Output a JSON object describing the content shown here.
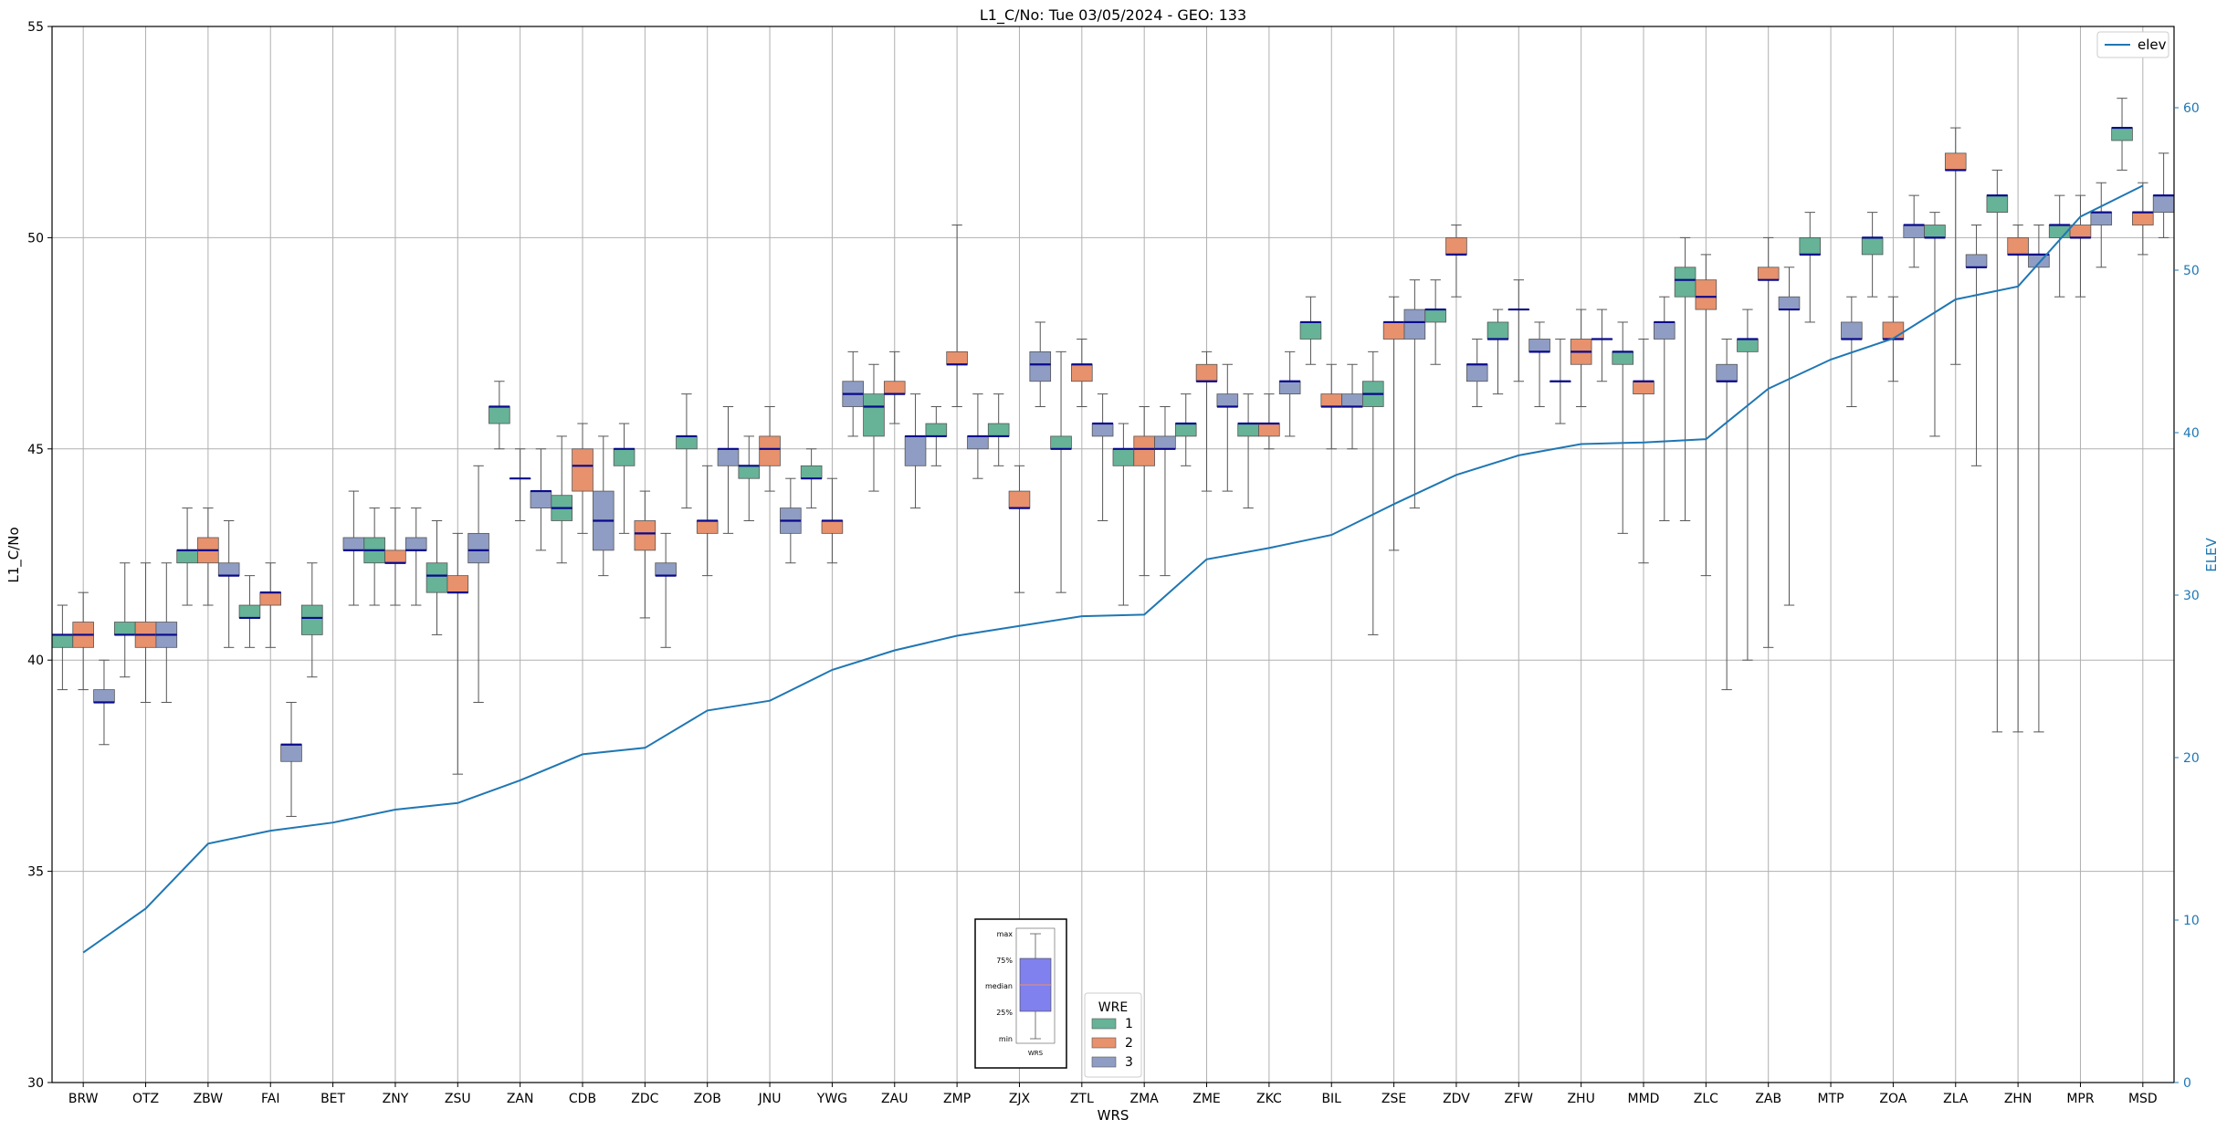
{
  "chart_data": {
    "type": "box",
    "title": "L1_C/No: Tue 03/05/2024 - GEO: 133",
    "xlabel": "WRS",
    "ylabel": "L1_C/No",
    "y2label": "ELEV",
    "ylim": [
      30,
      55
    ],
    "y2lim": [
      0,
      65
    ],
    "yticks": [
      30,
      35,
      40,
      45,
      50,
      55
    ],
    "y2ticks": [
      0,
      10,
      20,
      30,
      40,
      50,
      60
    ],
    "grid": true,
    "categories": [
      "BRW",
      "OTZ",
      "ZBW",
      "FAI",
      "BET",
      "ZNY",
      "ZSU",
      "ZAN",
      "CDB",
      "ZDC",
      "ZOB",
      "JNU",
      "YWG",
      "ZAU",
      "ZMP",
      "ZJX",
      "ZTL",
      "ZMA",
      "ZME",
      "ZKC",
      "BIL",
      "ZSE",
      "ZDV",
      "ZFW",
      "ZHU",
      "MMD",
      "ZLC",
      "ZAB",
      "MTP",
      "ZOA",
      "ZLA",
      "ZHN",
      "MPR",
      "MSD"
    ],
    "line_series": {
      "name": "elev",
      "color": "#1f77b4",
      "values": [
        8,
        10.7,
        14.7,
        15.5,
        16,
        16.8,
        17.2,
        18.6,
        20.2,
        20.6,
        22.9,
        23.5,
        25.4,
        26.6,
        27.5,
        28.1,
        28.7,
        28.8,
        32.2,
        32.9,
        33.7,
        35.6,
        37.4,
        38.6,
        39.3,
        39.4,
        39.6,
        42.7,
        44.5,
        45.8,
        48.2,
        49,
        53.3,
        55.2
      ]
    },
    "box_legend": {
      "title": "WRE",
      "entries": [
        {
          "label": "1",
          "color": "#66b398"
        },
        {
          "label": "2",
          "color": "#e8916d"
        },
        {
          "label": "3",
          "color": "#8f9dc4"
        }
      ]
    },
    "legend_placement": "top-right",
    "boxes": [
      {
        "station": "BRW",
        "wre": 1,
        "min": 39.3,
        "q1": 40.3,
        "median": 40.6,
        "q3": 40.6,
        "max": 41.3
      },
      {
        "station": "BRW",
        "wre": 2,
        "min": 39.3,
        "q1": 40.3,
        "median": 40.6,
        "q3": 40.9,
        "max": 41.6
      },
      {
        "station": "BRW",
        "wre": 3,
        "min": 38,
        "q1": 39,
        "median": 39,
        "q3": 39.3,
        "max": 40
      },
      {
        "station": "OTZ",
        "wre": 1,
        "min": 39.6,
        "q1": 40.6,
        "median": 40.6,
        "q3": 40.9,
        "max": 42.3
      },
      {
        "station": "OTZ",
        "wre": 2,
        "min": 39,
        "q1": 40.3,
        "median": 40.6,
        "q3": 40.9,
        "max": 42.3
      },
      {
        "station": "OTZ",
        "wre": 3,
        "min": 39,
        "q1": 40.3,
        "median": 40.6,
        "q3": 40.9,
        "max": 42.3
      },
      {
        "station": "ZBW",
        "wre": 1,
        "min": 41.3,
        "q1": 42.3,
        "median": 42.6,
        "q3": 42.6,
        "max": 43.6
      },
      {
        "station": "ZBW",
        "wre": 2,
        "min": 41.3,
        "q1": 42.3,
        "median": 42.6,
        "q3": 42.9,
        "max": 43.6
      },
      {
        "station": "ZBW",
        "wre": 3,
        "min": 40.3,
        "q1": 42,
        "median": 42,
        "q3": 42.3,
        "max": 43.3
      },
      {
        "station": "FAI",
        "wre": 1,
        "min": 40.3,
        "q1": 41,
        "median": 41,
        "q3": 41.3,
        "max": 42
      },
      {
        "station": "FAI",
        "wre": 2,
        "min": 40.3,
        "q1": 41.3,
        "median": 41.6,
        "q3": 41.6,
        "max": 42.3
      },
      {
        "station": "FAI",
        "wre": 3,
        "min": 36.3,
        "q1": 37.6,
        "median": 38,
        "q3": 38,
        "max": 39
      },
      {
        "station": "BET",
        "wre": 1,
        "min": 39.6,
        "q1": 40.6,
        "median": 41,
        "q3": 41.3,
        "max": 42.3
      },
      {
        "station": "BET",
        "wre": 3,
        "min": 41.3,
        "q1": 42.6,
        "median": 42.6,
        "q3": 42.9,
        "max": 44
      },
      {
        "station": "ZNY",
        "wre": 1,
        "min": 41.3,
        "q1": 42.3,
        "median": 42.6,
        "q3": 42.9,
        "max": 43.6
      },
      {
        "station": "ZNY",
        "wre": 2,
        "min": 41.3,
        "q1": 42.3,
        "median": 42.3,
        "q3": 42.6,
        "max": 43.6
      },
      {
        "station": "ZNY",
        "wre": 3,
        "min": 41.3,
        "q1": 42.6,
        "median": 42.6,
        "q3": 42.9,
        "max": 43.6
      },
      {
        "station": "ZSU",
        "wre": 1,
        "min": 40.6,
        "q1": 41.6,
        "median": 42,
        "q3": 42.3,
        "max": 43.3
      },
      {
        "station": "ZSU",
        "wre": 2,
        "min": 37.3,
        "q1": 41.6,
        "median": 41.6,
        "q3": 42,
        "max": 43
      },
      {
        "station": "ZSU",
        "wre": 3,
        "min": 39,
        "q1": 42.3,
        "median": 42.6,
        "q3": 43,
        "max": 44.6
      },
      {
        "station": "ZAN",
        "wre": 1,
        "min": 45,
        "q1": 45.6,
        "median": 46,
        "q3": 46,
        "max": 46.6
      },
      {
        "station": "ZAN",
        "wre": 2,
        "min": 43.3,
        "q1": 44.3,
        "median": 44.3,
        "q3": 44.3,
        "max": 45
      },
      {
        "station": "ZAN",
        "wre": 3,
        "min": 42.6,
        "q1": 43.6,
        "median": 44,
        "q3": 44,
        "max": 45
      },
      {
        "station": "CDB",
        "wre": 1,
        "min": 42.3,
        "q1": 43.3,
        "median": 43.6,
        "q3": 43.9,
        "max": 45.3
      },
      {
        "station": "CDB",
        "wre": 2,
        "min": 43,
        "q1": 44,
        "median": 44.6,
        "q3": 45,
        "max": 45.6
      },
      {
        "station": "CDB",
        "wre": 3,
        "min": 42,
        "q1": 42.6,
        "median": 43.3,
        "q3": 44,
        "max": 45.3
      },
      {
        "station": "ZDC",
        "wre": 1,
        "min": 43,
        "q1": 44.6,
        "median": 45,
        "q3": 45,
        "max": 45.6
      },
      {
        "station": "ZDC",
        "wre": 2,
        "min": 41,
        "q1": 42.6,
        "median": 43,
        "q3": 43.3,
        "max": 44
      },
      {
        "station": "ZDC",
        "wre": 3,
        "min": 40.3,
        "q1": 42,
        "median": 42,
        "q3": 42.3,
        "max": 43
      },
      {
        "station": "ZOB",
        "wre": 1,
        "min": 43.6,
        "q1": 45,
        "median": 45.3,
        "q3": 45.3,
        "max": 46.3
      },
      {
        "station": "ZOB",
        "wre": 2,
        "min": 42,
        "q1": 43,
        "median": 43.3,
        "q3": 43.3,
        "max": 44.6
      },
      {
        "station": "ZOB",
        "wre": 3,
        "min": 43,
        "q1": 44.6,
        "median": 45,
        "q3": 45,
        "max": 46
      },
      {
        "station": "JNU",
        "wre": 1,
        "min": 43.3,
        "q1": 44.3,
        "median": 44.6,
        "q3": 44.6,
        "max": 45.3
      },
      {
        "station": "JNU",
        "wre": 2,
        "min": 44,
        "q1": 44.6,
        "median": 45,
        "q3": 45.3,
        "max": 46
      },
      {
        "station": "JNU",
        "wre": 3,
        "min": 42.3,
        "q1": 43,
        "median": 43.3,
        "q3": 43.6,
        "max": 44.3
      },
      {
        "station": "YWG",
        "wre": 1,
        "min": 43.6,
        "q1": 44.3,
        "median": 44.3,
        "q3": 44.6,
        "max": 45
      },
      {
        "station": "YWG",
        "wre": 2,
        "min": 42.3,
        "q1": 43,
        "median": 43.3,
        "q3": 43.3,
        "max": 44.3
      },
      {
        "station": "YWG",
        "wre": 3,
        "min": 45.3,
        "q1": 46,
        "median": 46.3,
        "q3": 46.6,
        "max": 47.3
      },
      {
        "station": "ZAU",
        "wre": 1,
        "min": 44,
        "q1": 45.3,
        "median": 46,
        "q3": 46.3,
        "max": 47
      },
      {
        "station": "ZAU",
        "wre": 2,
        "min": 45.6,
        "q1": 46.3,
        "median": 46.3,
        "q3": 46.6,
        "max": 47.3
      },
      {
        "station": "ZAU",
        "wre": 3,
        "min": 43.6,
        "q1": 44.6,
        "median": 45.3,
        "q3": 45.3,
        "max": 46.3
      },
      {
        "station": "ZMP",
        "wre": 1,
        "min": 44.6,
        "q1": 45.3,
        "median": 45.3,
        "q3": 45.6,
        "max": 46
      },
      {
        "station": "ZMP",
        "wre": 2,
        "min": 46,
        "q1": 47,
        "median": 47,
        "q3": 47.3,
        "max": 50.3
      },
      {
        "station": "ZMP",
        "wre": 3,
        "min": 44.3,
        "q1": 45,
        "median": 45.3,
        "q3": 45.3,
        "max": 46.3
      },
      {
        "station": "ZJX",
        "wre": 1,
        "min": 44.6,
        "q1": 45.3,
        "median": 45.3,
        "q3": 45.6,
        "max": 46.3
      },
      {
        "station": "ZJX",
        "wre": 2,
        "min": 41.6,
        "q1": 43.6,
        "median": 43.6,
        "q3": 44,
        "max": 44.6
      },
      {
        "station": "ZJX",
        "wre": 3,
        "min": 46,
        "q1": 46.6,
        "median": 47,
        "q3": 47.3,
        "max": 48
      },
      {
        "station": "ZTL",
        "wre": 1,
        "min": 41.6,
        "q1": 45,
        "median": 45,
        "q3": 45.3,
        "max": 47.3
      },
      {
        "station": "ZTL",
        "wre": 2,
        "min": 46,
        "q1": 46.6,
        "median": 47,
        "q3": 47,
        "max": 47.6
      },
      {
        "station": "ZTL",
        "wre": 3,
        "min": 43.3,
        "q1": 45.3,
        "median": 45.6,
        "q3": 45.6,
        "max": 46.3
      },
      {
        "station": "ZMA",
        "wre": 1,
        "min": 41.3,
        "q1": 44.6,
        "median": 45,
        "q3": 45,
        "max": 45.6
      },
      {
        "station": "ZMA",
        "wre": 2,
        "min": 42,
        "q1": 44.6,
        "median": 45,
        "q3": 45.3,
        "max": 46
      },
      {
        "station": "ZMA",
        "wre": 3,
        "min": 42,
        "q1": 45,
        "median": 45,
        "q3": 45.3,
        "max": 46
      },
      {
        "station": "ZME",
        "wre": 1,
        "min": 44.6,
        "q1": 45.3,
        "median": 45.6,
        "q3": 45.6,
        "max": 46.3
      },
      {
        "station": "ZME",
        "wre": 2,
        "min": 44,
        "q1": 46.6,
        "median": 46.6,
        "q3": 47,
        "max": 47.3
      },
      {
        "station": "ZME",
        "wre": 3,
        "min": 44,
        "q1": 46,
        "median": 46,
        "q3": 46.3,
        "max": 47
      },
      {
        "station": "ZKC",
        "wre": 1,
        "min": 43.6,
        "q1": 45.3,
        "median": 45.6,
        "q3": 45.6,
        "max": 46.3
      },
      {
        "station": "ZKC",
        "wre": 2,
        "min": 45,
        "q1": 45.3,
        "median": 45.6,
        "q3": 45.6,
        "max": 46.3
      },
      {
        "station": "ZKC",
        "wre": 3,
        "min": 45.3,
        "q1": 46.3,
        "median": 46.6,
        "q3": 46.6,
        "max": 47.3
      },
      {
        "station": "BIL",
        "wre": 1,
        "min": 47,
        "q1": 47.6,
        "median": 48,
        "q3": 48,
        "max": 48.6
      },
      {
        "station": "BIL",
        "wre": 2,
        "min": 45,
        "q1": 46,
        "median": 46,
        "q3": 46.3,
        "max": 47
      },
      {
        "station": "BIL",
        "wre": 3,
        "min": 45,
        "q1": 46,
        "median": 46,
        "q3": 46.3,
        "max": 47
      },
      {
        "station": "ZSE",
        "wre": 1,
        "min": 40.6,
        "q1": 46,
        "median": 46.3,
        "q3": 46.6,
        "max": 47.3
      },
      {
        "station": "ZSE",
        "wre": 2,
        "min": 42.6,
        "q1": 47.6,
        "median": 48,
        "q3": 48,
        "max": 48.6
      },
      {
        "station": "ZSE",
        "wre": 3,
        "min": 43.6,
        "q1": 47.6,
        "median": 48,
        "q3": 48.3,
        "max": 49
      },
      {
        "station": "ZDV",
        "wre": 1,
        "min": 47,
        "q1": 48,
        "median": 48.3,
        "q3": 48.3,
        "max": 49
      },
      {
        "station": "ZDV",
        "wre": 2,
        "min": 48.6,
        "q1": 49.6,
        "median": 49.6,
        "q3": 50,
        "max": 50.3
      },
      {
        "station": "ZDV",
        "wre": 3,
        "min": 46,
        "q1": 46.6,
        "median": 47,
        "q3": 47,
        "max": 47.6
      },
      {
        "station": "ZFW",
        "wre": 1,
        "min": 46.3,
        "q1": 47.6,
        "median": 47.6,
        "q3": 48,
        "max": 48.3
      },
      {
        "station": "ZFW",
        "wre": 2,
        "min": 46.6,
        "q1": 48.3,
        "median": 48.3,
        "q3": 48.3,
        "max": 49
      },
      {
        "station": "ZFW",
        "wre": 3,
        "min": 46,
        "q1": 47.3,
        "median": 47.3,
        "q3": 47.6,
        "max": 48
      },
      {
        "station": "ZHU",
        "wre": 1,
        "min": 45.6,
        "q1": 46.6,
        "median": 46.6,
        "q3": 46.6,
        "max": 47.6
      },
      {
        "station": "ZHU",
        "wre": 2,
        "min": 46,
        "q1": 47,
        "median": 47.3,
        "q3": 47.6,
        "max": 48.3
      },
      {
        "station": "ZHU",
        "wre": 3,
        "min": 46.6,
        "q1": 47.6,
        "median": 47.6,
        "q3": 47.6,
        "max": 48.3
      },
      {
        "station": "MMD",
        "wre": 1,
        "min": 43,
        "q1": 47,
        "median": 47.3,
        "q3": 47.3,
        "max": 48
      },
      {
        "station": "MMD",
        "wre": 2,
        "min": 42.3,
        "q1": 46.3,
        "median": 46.6,
        "q3": 46.6,
        "max": 47.6
      },
      {
        "station": "MMD",
        "wre": 3,
        "min": 43.3,
        "q1": 47.6,
        "median": 48,
        "q3": 48,
        "max": 48.6
      },
      {
        "station": "ZLC",
        "wre": 1,
        "min": 43.3,
        "q1": 48.6,
        "median": 49,
        "q3": 49.3,
        "max": 50
      },
      {
        "station": "ZLC",
        "wre": 2,
        "min": 42,
        "q1": 48.3,
        "median": 48.6,
        "q3": 49,
        "max": 49.6
      },
      {
        "station": "ZLC",
        "wre": 3,
        "min": 39.3,
        "q1": 46.6,
        "median": 46.6,
        "q3": 47,
        "max": 47.6
      },
      {
        "station": "ZAB",
        "wre": 1,
        "min": 40,
        "q1": 47.3,
        "median": 47.6,
        "q3": 47.6,
        "max": 48.3
      },
      {
        "station": "ZAB",
        "wre": 2,
        "min": 40.3,
        "q1": 49,
        "median": 49,
        "q3": 49.3,
        "max": 50
      },
      {
        "station": "ZAB",
        "wre": 3,
        "min": 41.3,
        "q1": 48.3,
        "median": 48.3,
        "q3": 48.6,
        "max": 49.3
      },
      {
        "station": "MTP",
        "wre": 1,
        "min": 48,
        "q1": 49.6,
        "median": 49.6,
        "q3": 50,
        "max": 50.6
      },
      {
        "station": "MTP",
        "wre": 3,
        "min": 46,
        "q1": 47.6,
        "median": 47.6,
        "q3": 48,
        "max": 48.6
      },
      {
        "station": "ZOA",
        "wre": 1,
        "min": 48.6,
        "q1": 49.6,
        "median": 50,
        "q3": 50,
        "max": 50.6
      },
      {
        "station": "ZOA",
        "wre": 2,
        "min": 46.6,
        "q1": 47.6,
        "median": 47.6,
        "q3": 48,
        "max": 48.6
      },
      {
        "station": "ZOA",
        "wre": 3,
        "min": 49.3,
        "q1": 50,
        "median": 50.3,
        "q3": 50.3,
        "max": 51
      },
      {
        "station": "ZLA",
        "wre": 1,
        "min": 45.3,
        "q1": 50,
        "median": 50,
        "q3": 50.3,
        "max": 50.6
      },
      {
        "station": "ZLA",
        "wre": 2,
        "min": 47,
        "q1": 51.6,
        "median": 51.6,
        "q3": 52,
        "max": 52.6
      },
      {
        "station": "ZLA",
        "wre": 3,
        "min": 44.6,
        "q1": 49.3,
        "median": 49.3,
        "q3": 49.6,
        "max": 50.3
      },
      {
        "station": "ZHN",
        "wre": 1,
        "min": 38.3,
        "q1": 50.6,
        "median": 51,
        "q3": 51,
        "max": 51.6
      },
      {
        "station": "ZHN",
        "wre": 2,
        "min": 38.3,
        "q1": 49.6,
        "median": 49.6,
        "q3": 50,
        "max": 50.3
      },
      {
        "station": "ZHN",
        "wre": 3,
        "min": 38.3,
        "q1": 49.3,
        "median": 49.6,
        "q3": 49.6,
        "max": 50.3
      },
      {
        "station": "MPR",
        "wre": 1,
        "min": 48.6,
        "q1": 50,
        "median": 50.3,
        "q3": 50.3,
        "max": 51
      },
      {
        "station": "MPR",
        "wre": 2,
        "min": 48.6,
        "q1": 50,
        "median": 50,
        "q3": 50.3,
        "max": 51
      },
      {
        "station": "MPR",
        "wre": 3,
        "min": 49.3,
        "q1": 50.3,
        "median": 50.6,
        "q3": 50.6,
        "max": 51.3
      },
      {
        "station": "MSD",
        "wre": 1,
        "min": 51.6,
        "q1": 52.3,
        "median": 52.6,
        "q3": 52.6,
        "max": 53.3
      },
      {
        "station": "MSD",
        "wre": 2,
        "min": 49.6,
        "q1": 50.3,
        "median": 50.6,
        "q3": 50.6,
        "max": 51.3
      },
      {
        "station": "MSD",
        "wre": 3,
        "min": 50,
        "q1": 50.6,
        "median": 51,
        "q3": 51,
        "max": 52
      }
    ],
    "boxplot_guide": {
      "labels": [
        "max",
        "75%",
        "median",
        "25%",
        "min"
      ],
      "xlabel": "WRS",
      "box_color": "#8080ee",
      "median_color": "#e8916d"
    }
  }
}
